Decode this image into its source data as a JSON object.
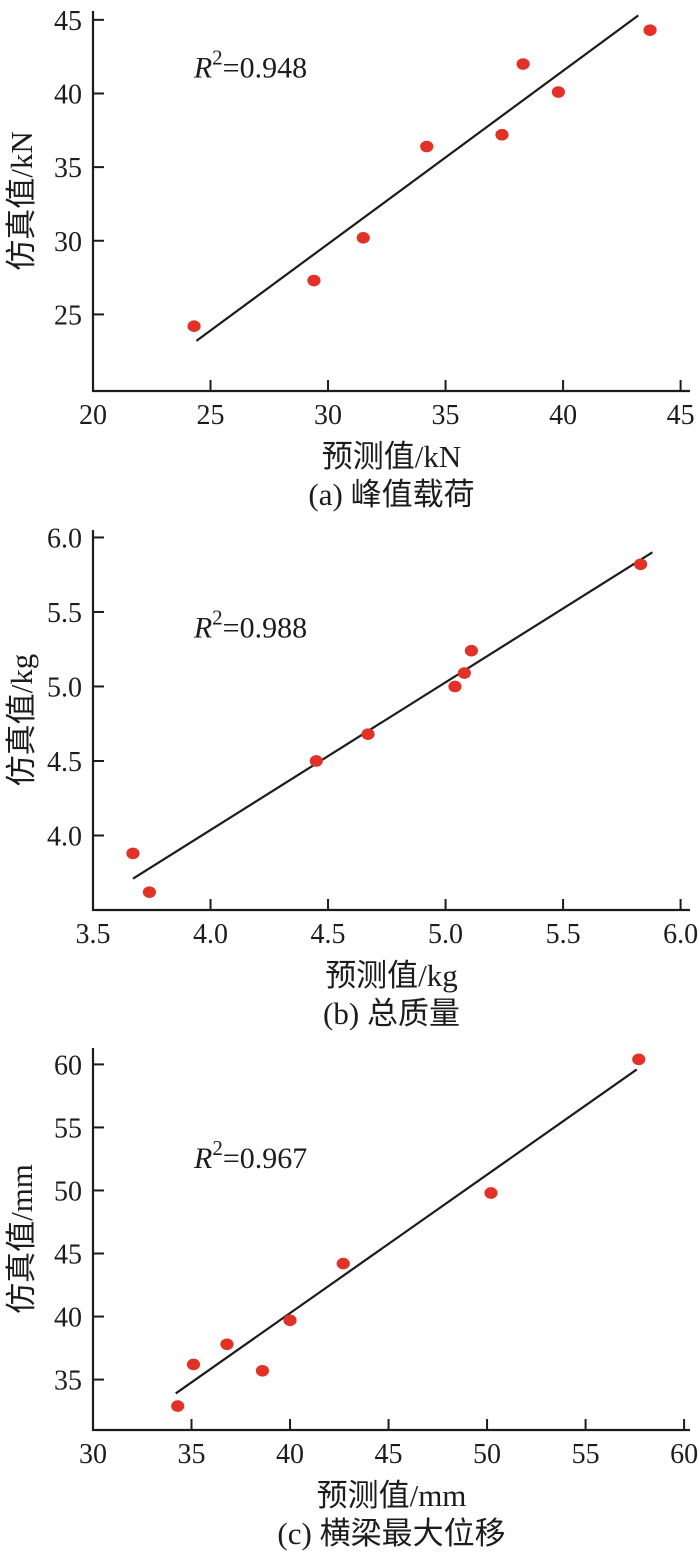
{
  "page": {
    "background": "#ffffff",
    "figure_name": "prediction-vs-simulation-scatter-panel"
  },
  "colors": {
    "point_fill": "#e23227",
    "axis_color": "#1c1c1c",
    "fit_line_color": "#1c1c1c"
  },
  "chart_data": [
    {
      "type": "scatter",
      "caption": "(a) 峰值载荷",
      "xlabel": "预测值/kN",
      "ylabel": "仿真值/kN",
      "annotation": {
        "base": "R",
        "sup": "2",
        "rest": "=0.948",
        "x": 26.7,
        "y": 41.1
      },
      "xlim": [
        20,
        45.4
      ],
      "ylim": [
        19.8,
        45.6
      ],
      "grid": false,
      "xticks": {
        "values": [
          20,
          25,
          30,
          35,
          40,
          45
        ],
        "labels": [
          "20",
          "25",
          "30",
          "35",
          "40",
          "45"
        ]
      },
      "yticks": {
        "values": [
          25,
          30,
          35,
          40,
          45
        ],
        "labels": [
          "25",
          "30",
          "35",
          "40",
          "45"
        ]
      },
      "points": [
        [
          24.3,
          24.2
        ],
        [
          29.4,
          27.3
        ],
        [
          31.5,
          30.2
        ],
        [
          34.2,
          36.4
        ],
        [
          37.4,
          37.2
        ],
        [
          38.3,
          42.0
        ],
        [
          39.8,
          40.1
        ],
        [
          43.7,
          44.3
        ]
      ],
      "fit_line": {
        "x1": 24.4,
        "y1": 23.2,
        "x2": 43.2,
        "y2": 45.3
      }
    },
    {
      "type": "scatter",
      "caption": "(b) 总质量",
      "xlabel": "预测值/kg",
      "ylabel": "仿真值/kg",
      "annotation": {
        "base": "R",
        "sup": "2",
        "rest": "=0.988",
        "x": 4.17,
        "y": 5.33
      },
      "xlim": [
        3.5,
        6.04
      ],
      "ylim": [
        3.5,
        6.05
      ],
      "grid": false,
      "xticks": {
        "values": [
          3.5,
          4.0,
          4.5,
          5.0,
          5.5,
          6.0
        ],
        "labels": [
          "3.5",
          "4.0",
          "4.5",
          "5.0",
          "5.5",
          "6.0"
        ]
      },
      "yticks": {
        "values": [
          4.0,
          4.5,
          5.0,
          5.5,
          6.0
        ],
        "labels": [
          "4.0",
          "4.5",
          "5.0",
          "5.5",
          "6.0"
        ]
      },
      "points": [
        [
          3.67,
          3.88
        ],
        [
          3.74,
          3.62
        ],
        [
          4.45,
          4.5
        ],
        [
          4.67,
          4.68
        ],
        [
          5.04,
          5.0
        ],
        [
          5.08,
          5.09
        ],
        [
          5.11,
          5.24
        ],
        [
          5.83,
          5.82
        ]
      ],
      "fit_line": {
        "x1": 3.67,
        "y1": 3.71,
        "x2": 5.88,
        "y2": 5.9
      }
    },
    {
      "type": "scatter",
      "caption": "(c) 横梁最大位移",
      "xlabel": "预测值/mm",
      "ylabel": "仿真值/mm",
      "annotation": {
        "base": "R",
        "sup": "2",
        "rest": "=0.967",
        "x": 38.0,
        "y": 51.8
      },
      "xlim": [
        30,
        60.3
      ],
      "ylim": [
        31,
        61.3
      ],
      "grid": false,
      "xticks": {
        "values": [
          30,
          35,
          40,
          45,
          50,
          55,
          60
        ],
        "labels": [
          "30",
          "35",
          "40",
          "45",
          "50",
          "55",
          "60"
        ]
      },
      "yticks": {
        "values": [
          35,
          40,
          45,
          50,
          55,
          60
        ],
        "labels": [
          "35",
          "40",
          "45",
          "50",
          "55",
          "60"
        ]
      },
      "points": [
        [
          34.3,
          32.9
        ],
        [
          35.1,
          36.2
        ],
        [
          36.8,
          37.8
        ],
        [
          38.6,
          35.7
        ],
        [
          40.0,
          39.7
        ],
        [
          42.7,
          44.2
        ],
        [
          50.2,
          49.8
        ],
        [
          57.7,
          60.4
        ]
      ],
      "fit_line": {
        "x1": 34.2,
        "y1": 33.9,
        "x2": 57.6,
        "y2": 59.6
      }
    }
  ]
}
